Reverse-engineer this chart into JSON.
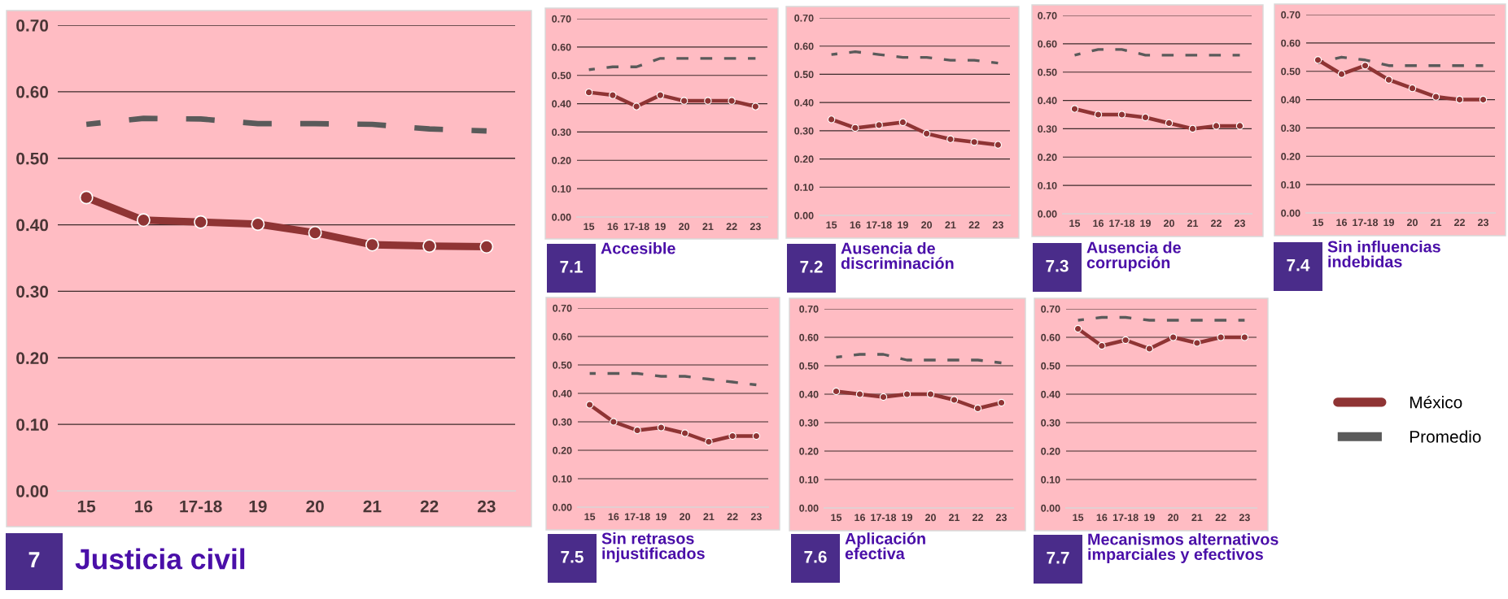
{
  "chart_data": [
    {
      "type": "line",
      "title": "Justicia civil",
      "annotations": [
        "7"
      ],
      "categories": [
        "15",
        "16",
        "17-18",
        "19",
        "20",
        "21",
        "22",
        "23"
      ],
      "ylim": [
        0,
        0.7
      ],
      "yticks": [
        {
          "value": 0,
          "label": "0.00"
        },
        {
          "value": 0.1,
          "label": "0.10"
        },
        {
          "value": 0.2,
          "label": "0.20"
        },
        {
          "value": 0.3,
          "label": "0.30"
        },
        {
          "value": 0.4,
          "label": "0.40"
        },
        {
          "value": 0.5,
          "label": "0.50"
        },
        {
          "value": 0.6,
          "label": "0.60"
        },
        {
          "value": 0.7,
          "label": "0.70"
        }
      ],
      "grid": "y",
      "series": [
        {
          "color": "#5a5a5a",
          "line_style": "dashed",
          "values": [
            0.551,
            0.56,
            0.559,
            0.552,
            0.552,
            0.551,
            0.544,
            0.541
          ]
        },
        {
          "color": "#8f3434",
          "marker": "circle",
          "line_style": "solid",
          "values": [
            0.441,
            0.407,
            0.404,
            0.401,
            0.388,
            0.37,
            0.368,
            0.367
          ]
        }
      ]
    },
    {
      "type": "line",
      "title": "Accesible",
      "annotations": [
        "7.1"
      ],
      "categories": [
        "15",
        "16",
        "17-18",
        "19",
        "20",
        "21",
        "22",
        "23"
      ],
      "ylim": [
        0,
        0.7
      ],
      "yticks": [
        {
          "value": 0,
          "label": "0.00"
        },
        {
          "value": 0.1,
          "label": "0.10"
        },
        {
          "value": 0.2,
          "label": "0.20"
        },
        {
          "value": 0.3,
          "label": "0.30"
        },
        {
          "value": 0.4,
          "label": "0.40"
        },
        {
          "value": 0.5,
          "label": "0.50"
        },
        {
          "value": 0.6,
          "label": "0.60"
        },
        {
          "value": 0.7,
          "label": "0.70"
        }
      ],
      "grid": "y",
      "series": [
        {
          "color": "#5a5a5a",
          "line_style": "dashed",
          "values": [
            0.52,
            0.53,
            0.53,
            0.56,
            0.56,
            0.56,
            0.56,
            0.56
          ]
        },
        {
          "color": "#8f3434",
          "marker": "circle",
          "line_style": "solid",
          "values": [
            0.44,
            0.43,
            0.39,
            0.43,
            0.41,
            0.41,
            0.41,
            0.39
          ]
        }
      ]
    },
    {
      "type": "line",
      "title": "Ausencia de discriminación",
      "annotations": [
        "7.2"
      ],
      "categories": [
        "15",
        "16",
        "17-18",
        "19",
        "20",
        "21",
        "22",
        "23"
      ],
      "ylim": [
        0,
        0.7
      ],
      "yticks": [
        {
          "value": 0,
          "label": "0.00"
        },
        {
          "value": 0.1,
          "label": "0.10"
        },
        {
          "value": 0.2,
          "label": "0.20"
        },
        {
          "value": 0.3,
          "label": "0.30"
        },
        {
          "value": 0.4,
          "label": "0.40"
        },
        {
          "value": 0.5,
          "label": "0.50"
        },
        {
          "value": 0.6,
          "label": "0.60"
        },
        {
          "value": 0.7,
          "label": "0.70"
        }
      ],
      "grid": "y",
      "series": [
        {
          "color": "#5a5a5a",
          "line_style": "dashed",
          "values": [
            0.57,
            0.58,
            0.57,
            0.56,
            0.56,
            0.55,
            0.55,
            0.54
          ]
        },
        {
          "color": "#8f3434",
          "marker": "circle",
          "line_style": "solid",
          "values": [
            0.34,
            0.31,
            0.32,
            0.33,
            0.29,
            0.27,
            0.26,
            0.25
          ]
        }
      ]
    },
    {
      "type": "line",
      "title": "Ausencia de corrupción",
      "annotations": [
        "7.3"
      ],
      "categories": [
        "15",
        "16",
        "17-18",
        "19",
        "20",
        "21",
        "22",
        "23"
      ],
      "ylim": [
        0,
        0.7
      ],
      "yticks": [
        {
          "value": 0,
          "label": "0.00"
        },
        {
          "value": 0.1,
          "label": "0.10"
        },
        {
          "value": 0.2,
          "label": "0.20"
        },
        {
          "value": 0.3,
          "label": "0.30"
        },
        {
          "value": 0.4,
          "label": "0.40"
        },
        {
          "value": 0.5,
          "label": "0.50"
        },
        {
          "value": 0.6,
          "label": "0.60"
        },
        {
          "value": 0.7,
          "label": "0.70"
        }
      ],
      "grid": "y",
      "series": [
        {
          "color": "#5a5a5a",
          "line_style": "dashed",
          "values": [
            0.56,
            0.58,
            0.58,
            0.56,
            0.56,
            0.56,
            0.56,
            0.56
          ]
        },
        {
          "color": "#8f3434",
          "marker": "circle",
          "line_style": "solid",
          "values": [
            0.37,
            0.35,
            0.35,
            0.34,
            0.32,
            0.3,
            0.31,
            0.31
          ]
        }
      ]
    },
    {
      "type": "line",
      "title": "Sin influencias indebidas",
      "annotations": [
        "7.4"
      ],
      "categories": [
        "15",
        "16",
        "17-18",
        "19",
        "20",
        "21",
        "22",
        "23"
      ],
      "ylim": [
        0,
        0.7
      ],
      "yticks": [
        {
          "value": 0,
          "label": "0.00"
        },
        {
          "value": 0.1,
          "label": "0.10"
        },
        {
          "value": 0.2,
          "label": "0.20"
        },
        {
          "value": 0.3,
          "label": "0.30"
        },
        {
          "value": 0.4,
          "label": "0.40"
        },
        {
          "value": 0.5,
          "label": "0.50"
        },
        {
          "value": 0.6,
          "label": "0.60"
        },
        {
          "value": 0.7,
          "label": "0.70"
        }
      ],
      "grid": "y",
      "series": [
        {
          "color": "#5a5a5a",
          "line_style": "dashed",
          "values": [
            0.53,
            0.55,
            0.54,
            0.52,
            0.52,
            0.52,
            0.52,
            0.52
          ]
        },
        {
          "color": "#8f3434",
          "marker": "circle",
          "line_style": "solid",
          "values": [
            0.54,
            0.49,
            0.52,
            0.47,
            0.44,
            0.41,
            0.4,
            0.4
          ]
        }
      ]
    },
    {
      "type": "line",
      "title": "Sin retrasos injustificados",
      "annotations": [
        "7.5"
      ],
      "categories": [
        "15",
        "16",
        "17-18",
        "19",
        "20",
        "21",
        "22",
        "23"
      ],
      "ylim": [
        0,
        0.7
      ],
      "yticks": [
        {
          "value": 0,
          "label": "0.00"
        },
        {
          "value": 0.1,
          "label": "0.10"
        },
        {
          "value": 0.2,
          "label": "0.20"
        },
        {
          "value": 0.3,
          "label": "0.30"
        },
        {
          "value": 0.4,
          "label": "0.40"
        },
        {
          "value": 0.5,
          "label": "0.50"
        },
        {
          "value": 0.6,
          "label": "0.60"
        },
        {
          "value": 0.7,
          "label": "0.70"
        }
      ],
      "grid": "y",
      "series": [
        {
          "color": "#5a5a5a",
          "line_style": "dashed",
          "values": [
            0.47,
            0.47,
            0.47,
            0.46,
            0.46,
            0.45,
            0.44,
            0.43
          ]
        },
        {
          "color": "#8f3434",
          "marker": "circle",
          "line_style": "solid",
          "values": [
            0.36,
            0.3,
            0.27,
            0.28,
            0.26,
            0.23,
            0.25,
            0.25
          ]
        }
      ]
    },
    {
      "type": "line",
      "title": "Aplicación efectiva",
      "annotations": [
        "7.6"
      ],
      "categories": [
        "15",
        "16",
        "17-18",
        "19",
        "20",
        "21",
        "22",
        "23"
      ],
      "ylim": [
        0,
        0.7
      ],
      "yticks": [
        {
          "value": 0,
          "label": "0.00"
        },
        {
          "value": 0.1,
          "label": "0.10"
        },
        {
          "value": 0.2,
          "label": "0.20"
        },
        {
          "value": 0.3,
          "label": "0.30"
        },
        {
          "value": 0.4,
          "label": "0.40"
        },
        {
          "value": 0.5,
          "label": "0.50"
        },
        {
          "value": 0.6,
          "label": "0.60"
        },
        {
          "value": 0.7,
          "label": "0.70"
        }
      ],
      "grid": "y",
      "series": [
        {
          "color": "#5a5a5a",
          "line_style": "dashed",
          "values": [
            0.53,
            0.54,
            0.54,
            0.52,
            0.52,
            0.52,
            0.52,
            0.51
          ]
        },
        {
          "color": "#8f3434",
          "marker": "circle",
          "line_style": "solid",
          "values": [
            0.41,
            0.4,
            0.39,
            0.4,
            0.4,
            0.38,
            0.35,
            0.37
          ]
        }
      ]
    },
    {
      "type": "line",
      "title": "Mecanismos alternativos imparciales y efectivos",
      "annotations": [
        "7.7"
      ],
      "categories": [
        "15",
        "16",
        "17-18",
        "19",
        "20",
        "21",
        "22",
        "23"
      ],
      "ylim": [
        0,
        0.7
      ],
      "yticks": [
        {
          "value": 0,
          "label": "0.00"
        },
        {
          "value": 0.1,
          "label": "0.10"
        },
        {
          "value": 0.2,
          "label": "0.20"
        },
        {
          "value": 0.3,
          "label": "0.30"
        },
        {
          "value": 0.4,
          "label": "0.40"
        },
        {
          "value": 0.5,
          "label": "0.50"
        },
        {
          "value": 0.6,
          "label": "0.60"
        },
        {
          "value": 0.7,
          "label": "0.70"
        }
      ],
      "grid": "y",
      "legend": "right",
      "series": [
        {
          "name": "Promedio",
          "color": "#5a5a5a",
          "line_style": "dashed",
          "values": [
            0.66,
            0.67,
            0.67,
            0.66,
            0.66,
            0.66,
            0.66,
            0.66
          ]
        },
        {
          "name": "México",
          "color": "#8f3434",
          "marker": "circle",
          "line_style": "solid",
          "values": [
            0.63,
            0.57,
            0.59,
            0.56,
            0.6,
            0.58,
            0.6,
            0.6
          ]
        }
      ]
    }
  ]
}
